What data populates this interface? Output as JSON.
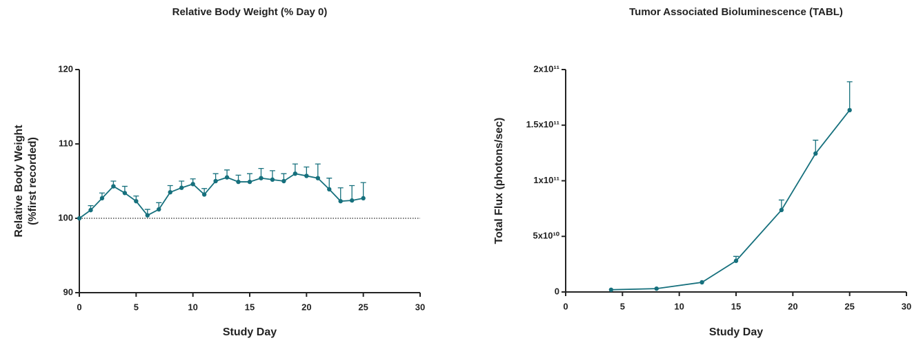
{
  "chart_data": [
    {
      "type": "line",
      "title": "Relative Body Weight (% Day 0)",
      "xlabel": "Study Day",
      "ylabel": [
        "Relative Body Weight",
        "(%first recorded)"
      ],
      "x": [
        0,
        1,
        2,
        3,
        4,
        5,
        6,
        7,
        8,
        9,
        10,
        11,
        12,
        13,
        14,
        15,
        16,
        17,
        18,
        19,
        20,
        21,
        22,
        23,
        24,
        25
      ],
      "series": [
        {
          "color": "#16707d",
          "values": [
            100,
            101.1,
            102.7,
            104.3,
            103.4,
            102.3,
            100.4,
            101.2,
            103.5,
            104.1,
            104.6,
            103.2,
            105.0,
            105.5,
            104.9,
            104.9,
            105.4,
            105.2,
            105.0,
            106.0,
            105.7,
            105.4,
            103.9,
            102.3,
            102.4,
            102.7
          ],
          "errors": [
            0,
            0.6,
            0.7,
            0.7,
            0.9,
            0.7,
            0.8,
            0.9,
            0.9,
            0.9,
            0.7,
            0.8,
            1.0,
            1.0,
            0.9,
            1.1,
            1.3,
            1.2,
            1.0,
            1.3,
            1.2,
            1.9,
            1.5,
            1.8,
            2.0,
            2.1
          ]
        }
      ],
      "xlim": [
        0,
        30
      ],
      "xticks": [
        0,
        5,
        10,
        15,
        20,
        25,
        30
      ],
      "ylim": [
        90,
        120
      ],
      "yticks": [
        90,
        100,
        110,
        120
      ],
      "reference_line": 100
    },
    {
      "type": "line",
      "title": "Tumor Associated Bioluminescence (TABL)",
      "xlabel": "Study Day",
      "ylabel": [
        "Total Flux (photons/sec)"
      ],
      "x": [
        4,
        8,
        12,
        15,
        19,
        22,
        25
      ],
      "series": [
        {
          "color": "#16707d",
          "values": [
            2000000000,
            3000000000,
            8700000000,
            28000000000,
            73700000000,
            124500000000,
            163500000000
          ],
          "errors": [
            0,
            0,
            0,
            4000000000,
            9000000000,
            12000000000,
            25500000000
          ]
        }
      ],
      "xlim": [
        0,
        30
      ],
      "xticks": [
        0,
        5,
        10,
        15,
        20,
        25,
        30
      ],
      "ylim": [
        0,
        200000000000
      ],
      "yticks": [
        0,
        {
          "value": 50000000000,
          "label": "5x10¹⁰"
        },
        {
          "value": 100000000000,
          "label": "1x10¹¹"
        },
        {
          "value": 150000000000,
          "label": "1.5x10¹¹"
        },
        {
          "value": 200000000000,
          "label": "2x10¹¹"
        }
      ]
    }
  ]
}
